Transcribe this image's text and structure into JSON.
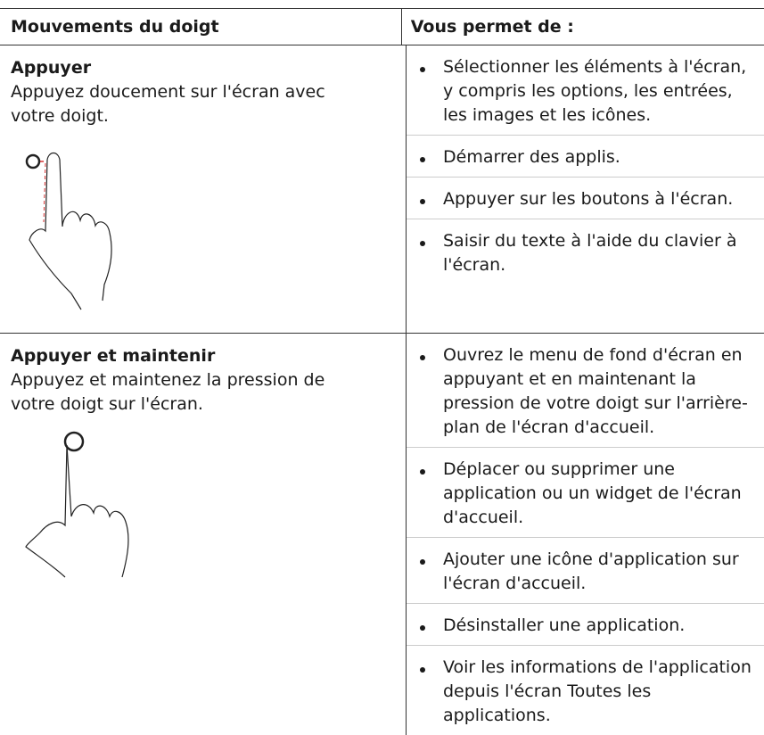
{
  "table": {
    "header": [
      "Mouvements du doigt",
      "Vous permet de :"
    ],
    "rows": [
      {
        "gesture": "Appuyer",
        "description": "Appuyez doucement sur l'écran avec votre doigt.",
        "actions": [
          "Sélectionner les éléments à l'écran, y compris les options, les entrées, les images et les icônes.",
          "Démarrer des applis.",
          "Appuyer sur les boutons à l'écran.",
          "Saisir du texte à l'aide du clavier à l'écran."
        ]
      },
      {
        "gesture": "Appuyer et maintenir",
        "description": "Appuyez et maintenez la pression de votre doigt sur l'écran.",
        "actions": [
          "Ouvrez le menu de fond d'écran en appuyant et en maintenant la pression de votre doigt sur l'arrière-plan de l'écran d'accueil.",
          "Déplacer ou supprimer une application ou un widget de l'écran d'accueil.",
          "Ajouter une icône d'application sur l'écran d'accueil.",
          "Désinstaller une application.",
          "Voir les informations de l'application depuis l'écran Toutes les applications."
        ]
      }
    ]
  }
}
